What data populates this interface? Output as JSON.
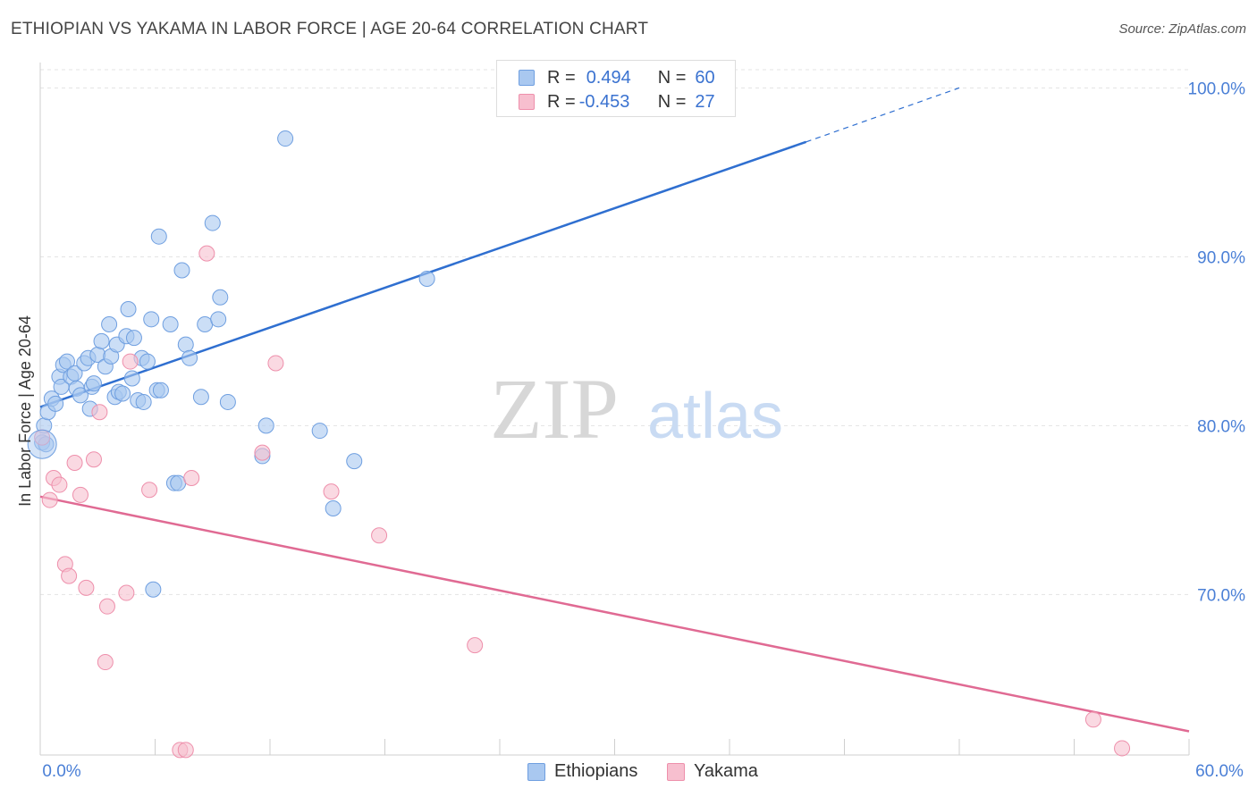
{
  "title": "ETHIOPIAN VS YAKAMA IN LABOR FORCE | AGE 20-64 CORRELATION CHART",
  "source": "Source: ZipAtlas.com",
  "watermark": {
    "zip": "ZIP",
    "atlas": "atlas"
  },
  "legend": {
    "rows": [
      {
        "r_label": "R =",
        "r_value": "0.494",
        "n_label": "N =",
        "n_value": "60",
        "color": "#a9c8f0",
        "border": "#6f9fe0"
      },
      {
        "r_label": "R =",
        "r_value": "-0.453",
        "n_label": "N =",
        "n_value": "27",
        "color": "#f7bfcf",
        "border": "#ee8fab"
      }
    ]
  },
  "bottom_legend": [
    {
      "label": "Ethiopians",
      "color": "#a9c8f0",
      "border": "#6f9fe0"
    },
    {
      "label": "Yakama",
      "color": "#f7bfcf",
      "border": "#ee8fab"
    }
  ],
  "chart_data": {
    "type": "scatter",
    "title": "ETHIOPIAN VS YAKAMA IN LABOR FORCE | AGE 20-64 CORRELATION CHART",
    "xlabel": "",
    "ylabel": "In Labor Force | Age 20-64",
    "xlim": [
      0,
      60
    ],
    "ylim": [
      60.5,
      101.5
    ],
    "x_tick_labels": [
      "0.0%",
      "60.0%"
    ],
    "y_ticks": [
      70,
      80,
      90,
      100
    ],
    "y_tick_labels": [
      "70.0%",
      "80.0%",
      "90.0%",
      "100.0%"
    ],
    "grid": true,
    "legend_position": "top-center",
    "series": [
      {
        "name": "Ethiopians",
        "color": "#a9c8f0",
        "stroke": "#6f9fe0",
        "trend_color": "#2f6fd0",
        "trend": {
          "x0": 0,
          "y0": 81.1,
          "x1": 40,
          "y1": 96.8,
          "dash_x1": 48,
          "dash_y1": 100
        },
        "points": [
          [
            0.1,
            79.0
          ],
          [
            0.2,
            80.0
          ],
          [
            0.4,
            80.8
          ],
          [
            0.6,
            81.6
          ],
          [
            0.8,
            81.3
          ],
          [
            1.0,
            82.9
          ],
          [
            1.1,
            82.3
          ],
          [
            1.2,
            83.6
          ],
          [
            1.4,
            83.8
          ],
          [
            1.6,
            82.9
          ],
          [
            1.8,
            83.1
          ],
          [
            1.9,
            82.2
          ],
          [
            2.1,
            81.8
          ],
          [
            2.3,
            83.7
          ],
          [
            2.5,
            84.0
          ],
          [
            2.6,
            81.0
          ],
          [
            2.7,
            82.3
          ],
          [
            2.8,
            82.5
          ],
          [
            3.0,
            84.2
          ],
          [
            3.2,
            85.0
          ],
          [
            3.4,
            83.5
          ],
          [
            3.6,
            86.0
          ],
          [
            3.7,
            84.1
          ],
          [
            3.9,
            81.7
          ],
          [
            4.0,
            84.8
          ],
          [
            4.1,
            82.0
          ],
          [
            4.3,
            81.9
          ],
          [
            4.6,
            86.9
          ],
          [
            4.5,
            85.3
          ],
          [
            4.8,
            82.8
          ],
          [
            4.9,
            85.2
          ],
          [
            5.1,
            81.5
          ],
          [
            5.3,
            84.0
          ],
          [
            5.4,
            81.4
          ],
          [
            5.6,
            83.8
          ],
          [
            5.8,
            86.3
          ],
          [
            5.9,
            70.3
          ],
          [
            6.1,
            82.1
          ],
          [
            6.3,
            82.1
          ],
          [
            6.2,
            91.2
          ],
          [
            6.8,
            86.0
          ],
          [
            7.0,
            76.6
          ],
          [
            7.2,
            76.6
          ],
          [
            7.4,
            89.2
          ],
          [
            7.6,
            84.8
          ],
          [
            7.8,
            84.0
          ],
          [
            8.4,
            81.7
          ],
          [
            8.6,
            86.0
          ],
          [
            9.0,
            92.0
          ],
          [
            9.3,
            86.3
          ],
          [
            9.4,
            87.6
          ],
          [
            9.8,
            81.4
          ],
          [
            11.6,
            78.2
          ],
          [
            11.8,
            80.0
          ],
          [
            12.8,
            97.0
          ],
          [
            14.6,
            79.7
          ],
          [
            15.3,
            75.1
          ],
          [
            16.4,
            77.9
          ],
          [
            20.2,
            88.7
          ],
          [
            0.3,
            78.9
          ]
        ]
      },
      {
        "name": "Yakama",
        "color": "#f7bfcf",
        "stroke": "#ee8fab",
        "trend_color": "#e06a93",
        "trend": {
          "x0": 0,
          "y0": 75.8,
          "x1": 60,
          "y1": 61.9
        },
        "points": [
          [
            0.1,
            79.3
          ],
          [
            0.5,
            75.6
          ],
          [
            0.7,
            76.9
          ],
          [
            1.0,
            76.5
          ],
          [
            1.3,
            71.8
          ],
          [
            1.5,
            71.1
          ],
          [
            1.8,
            77.8
          ],
          [
            2.1,
            75.9
          ],
          [
            2.4,
            70.4
          ],
          [
            2.8,
            78.0
          ],
          [
            3.1,
            80.8
          ],
          [
            3.4,
            66.0
          ],
          [
            3.5,
            69.3
          ],
          [
            4.5,
            70.1
          ],
          [
            4.7,
            83.8
          ],
          [
            5.7,
            76.2
          ],
          [
            7.3,
            60.8
          ],
          [
            7.6,
            60.8
          ],
          [
            7.9,
            76.9
          ],
          [
            8.7,
            90.2
          ],
          [
            11.6,
            78.4
          ],
          [
            12.3,
            83.7
          ],
          [
            15.2,
            76.1
          ],
          [
            17.7,
            73.5
          ],
          [
            22.7,
            67.0
          ],
          [
            55.0,
            62.6
          ],
          [
            56.5,
            60.9
          ]
        ]
      }
    ]
  }
}
